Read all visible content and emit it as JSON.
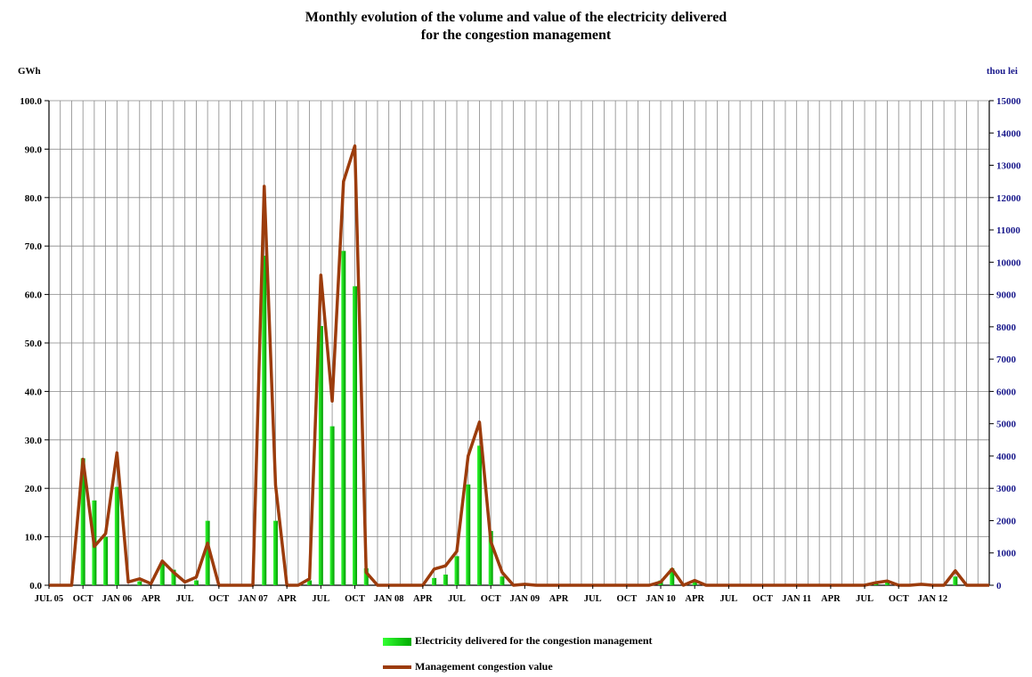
{
  "chart_data": {
    "type": "bar",
    "title_line1": "Monthly evolution of the volume and value of the electricity delivered",
    "title_line2": "for the congestion management",
    "left_unit": "GWh",
    "right_unit": "thou lei",
    "y_left": {
      "min": 0,
      "max": 100,
      "step": 10
    },
    "y_right": {
      "min": 0,
      "max": 15000,
      "step": 1000
    },
    "x_labels": [
      "JUL 05",
      "OCT",
      "JAN 06",
      "APR",
      "JUL",
      "OCT",
      "JAN 07",
      "APR",
      "JUL",
      "OCT",
      "JAN 08",
      "APR",
      "JUL",
      "OCT",
      "JAN 09",
      "APR",
      "JUL",
      "OCT",
      "JAN 10",
      "APR",
      "JUL",
      "OCT",
      "JAN 11",
      "APR",
      "JUL",
      "OCT",
      "JAN 12"
    ],
    "series": [
      {
        "name": "Electricity delivered for the congestion management",
        "axis": "left",
        "kind": "bar",
        "values": [
          0,
          0,
          0,
          26.2,
          17.5,
          10,
          20.3,
          0,
          0.8,
          0,
          4.5,
          3.2,
          0,
          1,
          13.3,
          0,
          0,
          0,
          0,
          68,
          13.3,
          0,
          0,
          1,
          53.5,
          32.8,
          69,
          61.7,
          3.5,
          0,
          0,
          0,
          0,
          0,
          1.5,
          2.2,
          6,
          20.8,
          28.8,
          11.2,
          1.8,
          0,
          0,
          0,
          0,
          0,
          0,
          0,
          0,
          0,
          0,
          0,
          0,
          0,
          1,
          3.5,
          0,
          0.8,
          0,
          0,
          0,
          0,
          0,
          0,
          0,
          0,
          0,
          0,
          0,
          0,
          0,
          0,
          0,
          0.5,
          0.8,
          0,
          0,
          0,
          0,
          0,
          1.8,
          0,
          0,
          0
        ]
      },
      {
        "name": "Management congestion value",
        "axis": "right",
        "kind": "line",
        "values": [
          0,
          0,
          0,
          3900,
          1200,
          1600,
          4100,
          100,
          200,
          50,
          750,
          400,
          100,
          250,
          1300,
          0,
          0,
          0,
          0,
          12350,
          3100,
          0,
          0,
          200,
          9600,
          5700,
          12500,
          13600,
          400,
          0,
          0,
          0,
          0,
          0,
          500,
          600,
          1050,
          4000,
          5050,
          1350,
          400,
          0,
          30,
          0,
          0,
          0,
          0,
          0,
          0,
          0,
          0,
          0,
          0,
          0,
          100,
          500,
          0,
          150,
          0,
          0,
          0,
          0,
          0,
          0,
          0,
          0,
          0,
          0,
          0,
          0,
          0,
          0,
          0,
          80,
          130,
          0,
          0,
          30,
          0,
          0,
          450,
          0,
          0,
          0
        ]
      }
    ],
    "grid": true,
    "legend_position": "bottom-center"
  },
  "legend": {
    "bar_label": "Electricity delivered for the congestion management",
    "line_label": "Management congestion value"
  },
  "colors": {
    "bar_light": "#33ff33",
    "bar_dark": "#009900",
    "line": "#9c3c0c",
    "right_axis": "#1a1a8c"
  }
}
